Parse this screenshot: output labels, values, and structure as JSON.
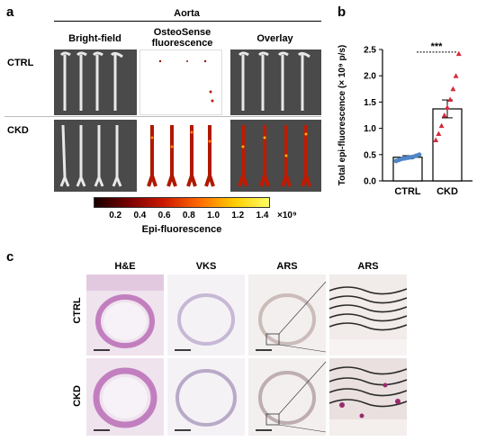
{
  "panels": {
    "a": "a",
    "b": "b",
    "c": "c"
  },
  "panel_a": {
    "group_title": "Aorta",
    "col_headers": [
      "Bright-field",
      "OsteoSense fluorescence",
      "Overlay"
    ],
    "rows": [
      "CTRL",
      "CKD"
    ],
    "colorbar": {
      "ticks": [
        "0.2",
        "0.4",
        "0.6",
        "0.8",
        "1.0",
        "1.2",
        "1.4"
      ],
      "multiplier": "×10⁹",
      "label": "Epi-fluorescence",
      "colors": [
        "#1a0000",
        "#7a0000",
        "#cc1a00",
        "#ff6a00",
        "#ffcc00",
        "#ffff66"
      ]
    }
  },
  "panel_b": {
    "significance": "***",
    "colors": {
      "ctrl": "#4f86c6",
      "ckd": "#d62b3a"
    }
  },
  "chart_data": {
    "type": "bar",
    "categories": [
      "CTRL",
      "CKD"
    ],
    "values": [
      0.45,
      1.37
    ],
    "error": [
      0.03,
      0.17
    ],
    "points": {
      "CTRL": [
        0.38,
        0.4,
        0.42,
        0.43,
        0.44,
        0.45,
        0.46,
        0.48,
        0.5
      ],
      "CKD": [
        0.78,
        0.9,
        1.05,
        1.25,
        1.4,
        1.55,
        1.75,
        2.0,
        2.42
      ]
    },
    "ylabel": "Total epi-fluorescence (× 10⁹ p/s)",
    "ylim": [
      0,
      2.5
    ],
    "yticks": [
      "0.0",
      "0.5",
      "1.0",
      "1.5",
      "2.0",
      "2.5"
    ],
    "grid": false
  },
  "panel_c": {
    "col_headers": [
      "H&E",
      "VKS",
      "ARS",
      "ARS"
    ],
    "rows": [
      "CTRL",
      "CKD"
    ],
    "colors": {
      "he": "#c98bc4",
      "he_bg": "#e9d2e6",
      "vks": "#d8cfe0",
      "ars": "#e0d6d4"
    }
  }
}
